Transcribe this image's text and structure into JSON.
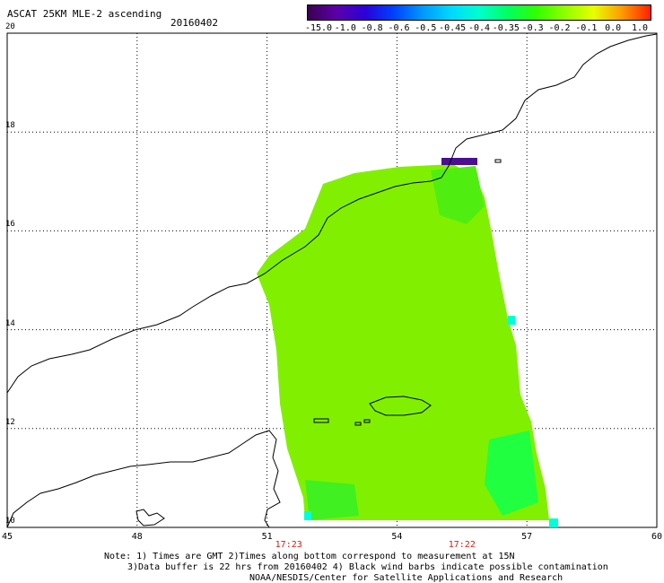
{
  "header": {
    "title": "ASCAT 25KM MLE-2 ascending",
    "date": "20160402"
  },
  "colorbar": {
    "labels": [
      "-15.0",
      "-1.0",
      "-0.8",
      "-0.6",
      "-0.5",
      "-0.45",
      "-0.4",
      "-0.35",
      "-0.3",
      "-0.2",
      "-0.1",
      "0.0",
      "1.0"
    ],
    "colors": [
      "#3a0050",
      "#5b00a8",
      "#2a00d8",
      "#0040ff",
      "#0096ff",
      "#00d8ff",
      "#00ffcc",
      "#00ff60",
      "#30ff00",
      "#90ff00",
      "#e8ff00",
      "#ff9a00",
      "#ff2000"
    ]
  },
  "axes": {
    "x_ticks": [
      "45",
      "48",
      "51",
      "54",
      "57",
      "60"
    ],
    "y_ticks": [
      "20",
      "18",
      "16",
      "14",
      "12",
      "10"
    ],
    "lon_range": [
      45,
      60
    ],
    "lat_range": [
      10,
      20
    ]
  },
  "pass_times": [
    {
      "label": "17:23",
      "lon": 51.5
    },
    {
      "label": "17:22",
      "lon": 55.5
    }
  ],
  "notes": {
    "line1": "Note: 1) Times are GMT 2)Times along bottom correspond to measurement at 15N",
    "line2": "3)Data buffer is 22 hrs from 20160402 4) Black wind barbs indicate possible contamination",
    "line3": "NOAA/NESDIS/Center for Satellite Applications and Research"
  }
}
